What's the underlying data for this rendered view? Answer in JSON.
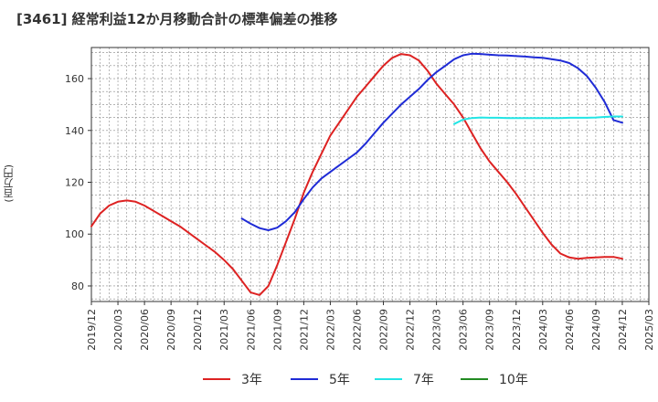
{
  "chart_data": {
    "type": "line",
    "title": "[3461]  経常利益12か月移動合計の標準偏差の推移",
    "ylabel": "(百万円)",
    "xlabel": "",
    "ylim": [
      74,
      172
    ],
    "xlim": [
      "2019-12",
      "2025-03"
    ],
    "grid": true,
    "legend_position": "bottom",
    "y_ticks": [
      "80",
      "100",
      "120",
      "140",
      "160"
    ],
    "x_ticks": [
      "2019/12",
      "2020/03",
      "2020/06",
      "2020/09",
      "2020/12",
      "2021/03",
      "2021/06",
      "2021/09",
      "2021/12",
      "2022/03",
      "2022/06",
      "2022/09",
      "2022/12",
      "2023/03",
      "2023/06",
      "2023/09",
      "2023/12",
      "2024/03",
      "2024/06",
      "2024/09",
      "2024/12",
      "2025/03"
    ],
    "series": [
      {
        "name": "3年",
        "color": "#dd2222",
        "x": [
          "2019-12",
          "2020-01",
          "2020-02",
          "2020-03",
          "2020-04",
          "2020-05",
          "2020-06",
          "2020-07",
          "2020-08",
          "2020-09",
          "2020-10",
          "2020-11",
          "2020-12",
          "2021-01",
          "2021-02",
          "2021-03",
          "2021-04",
          "2021-05",
          "2021-06",
          "2021-07",
          "2021-08",
          "2021-09",
          "2021-10",
          "2021-11",
          "2021-12",
          "2022-01",
          "2022-02",
          "2022-03",
          "2022-04",
          "2022-05",
          "2022-06",
          "2022-07",
          "2022-08",
          "2022-09",
          "2022-10",
          "2022-11",
          "2022-12",
          "2023-01",
          "2023-02",
          "2023-03",
          "2023-04",
          "2023-05",
          "2023-06",
          "2023-07",
          "2023-08",
          "2023-09",
          "2023-10",
          "2023-11",
          "2023-12",
          "2024-01",
          "2024-02",
          "2024-03",
          "2024-04",
          "2024-05",
          "2024-06",
          "2024-07",
          "2024-08",
          "2024-09",
          "2024-10",
          "2024-11",
          "2024-12"
        ],
        "values": [
          103,
          108,
          111,
          112.5,
          113,
          112.5,
          111,
          109,
          107,
          105,
          103,
          100.5,
          98,
          95.5,
          93,
          90,
          86.5,
          82,
          77.5,
          76.5,
          80,
          88,
          97,
          106,
          116,
          124,
          131,
          138,
          143,
          148,
          153,
          157,
          161,
          165,
          168,
          169.5,
          169,
          167,
          163,
          158,
          154,
          150,
          145,
          139,
          133,
          128,
          124,
          120,
          115.5,
          110.5,
          105.5,
          100.5,
          96,
          92.5,
          91,
          90.5,
          90.8,
          91,
          91.2,
          91.2,
          90.5
        ]
      },
      {
        "name": "5年",
        "color": "#1f2bd6",
        "x": [
          "2021-05",
          "2021-06",
          "2021-07",
          "2021-08",
          "2021-09",
          "2021-10",
          "2021-11",
          "2021-12",
          "2022-01",
          "2022-02",
          "2022-03",
          "2022-04",
          "2022-05",
          "2022-06",
          "2022-07",
          "2022-08",
          "2022-09",
          "2022-10",
          "2022-11",
          "2022-12",
          "2023-01",
          "2023-02",
          "2023-03",
          "2023-04",
          "2023-05",
          "2023-06",
          "2023-07",
          "2023-08",
          "2023-09",
          "2023-10",
          "2023-11",
          "2023-12",
          "2024-01",
          "2024-02",
          "2024-03",
          "2024-04",
          "2024-05",
          "2024-06",
          "2024-07",
          "2024-08",
          "2024-09",
          "2024-10",
          "2024-11",
          "2024-12"
        ],
        "values": [
          106,
          104,
          102.3,
          101.5,
          102.5,
          105,
          108.5,
          113.5,
          118,
          121.5,
          124,
          126.5,
          129,
          131.5,
          135,
          139,
          143,
          146.5,
          150,
          153,
          156,
          159.5,
          162.5,
          165,
          167.5,
          169,
          169.6,
          169.5,
          169.2,
          169,
          168.9,
          168.7,
          168.5,
          168.2,
          168,
          167.5,
          167,
          166,
          164,
          161,
          156.5,
          151,
          144,
          143
        ]
      },
      {
        "name": "7年",
        "color": "#22e5e5",
        "x": [
          "2023-05",
          "2023-06",
          "2023-07",
          "2023-08",
          "2023-09",
          "2023-10",
          "2023-11",
          "2023-12",
          "2024-01",
          "2024-02",
          "2024-03",
          "2024-04",
          "2024-05",
          "2024-06",
          "2024-07",
          "2024-08",
          "2024-09",
          "2024-10",
          "2024-11",
          "2024-12"
        ],
        "values": [
          142.5,
          144.2,
          144.8,
          145,
          144.9,
          144.9,
          144.8,
          144.8,
          144.8,
          144.8,
          144.8,
          144.8,
          144.8,
          144.9,
          144.9,
          144.9,
          145,
          145.2,
          145.4,
          145.4
        ]
      },
      {
        "name": "10年",
        "color": "#228b22",
        "x": [],
        "values": []
      }
    ]
  }
}
